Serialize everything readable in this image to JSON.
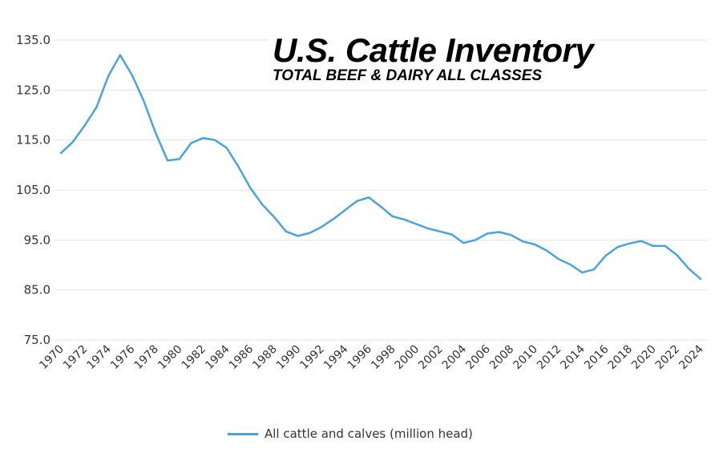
{
  "chart_data": {
    "type": "line",
    "title": "U.S. Cattle Inventory",
    "subtitle": "TOTAL BEEF & DAIRY ALL CLASSES",
    "xlabel": "",
    "ylabel": "",
    "ylim": [
      75,
      135
    ],
    "yticks": [
      "75.0",
      "85.0",
      "95.0",
      "105.0",
      "115.0",
      "125.0",
      "135.0"
    ],
    "ytick_values": [
      75,
      85,
      95,
      105,
      115,
      125,
      135
    ],
    "xticks": [
      "1970",
      "1972",
      "1974",
      "1976",
      "1978",
      "1980",
      "1982",
      "1984",
      "1986",
      "1988",
      "1990",
      "1992",
      "1994",
      "1996",
      "1998",
      "2000",
      "2002",
      "2004",
      "2006",
      "2008",
      "2010",
      "2012",
      "2014",
      "2016",
      "2018",
      "2020",
      "2022",
      "2024"
    ],
    "grid": true,
    "legend_position": "bottom-center",
    "x": [
      1970,
      1971,
      1972,
      1973,
      1974,
      1975,
      1976,
      1977,
      1978,
      1979,
      1980,
      1981,
      1982,
      1983,
      1984,
      1985,
      1986,
      1987,
      1988,
      1989,
      1990,
      1991,
      1992,
      1993,
      1994,
      1995,
      1996,
      1997,
      1998,
      1999,
      2000,
      2001,
      2002,
      2003,
      2004,
      2005,
      2006,
      2007,
      2008,
      2009,
      2010,
      2011,
      2012,
      2013,
      2014,
      2015,
      2016,
      2017,
      2018,
      2019,
      2020,
      2021,
      2022,
      2023,
      2024
    ],
    "series": [
      {
        "name": "All cattle and calves (million head)",
        "color": "#4aa3df",
        "values": [
          112.4,
          114.6,
          117.9,
          121.5,
          127.8,
          132.0,
          128.0,
          122.8,
          116.4,
          110.9,
          111.2,
          114.4,
          115.4,
          115.0,
          113.4,
          109.6,
          105.4,
          102.1,
          99.6,
          96.7,
          95.8,
          96.4,
          97.6,
          99.2,
          101.0,
          102.8,
          103.5,
          101.7,
          99.7,
          99.1,
          98.2,
          97.3,
          96.7,
          96.1,
          94.4,
          95.0,
          96.3,
          96.6,
          96.0,
          94.7,
          94.1,
          92.9,
          91.2,
          90.1,
          88.5,
          89.1,
          91.9,
          93.6,
          94.3,
          94.8,
          93.8,
          93.8,
          92.0,
          89.3,
          87.2
        ]
      }
    ]
  }
}
